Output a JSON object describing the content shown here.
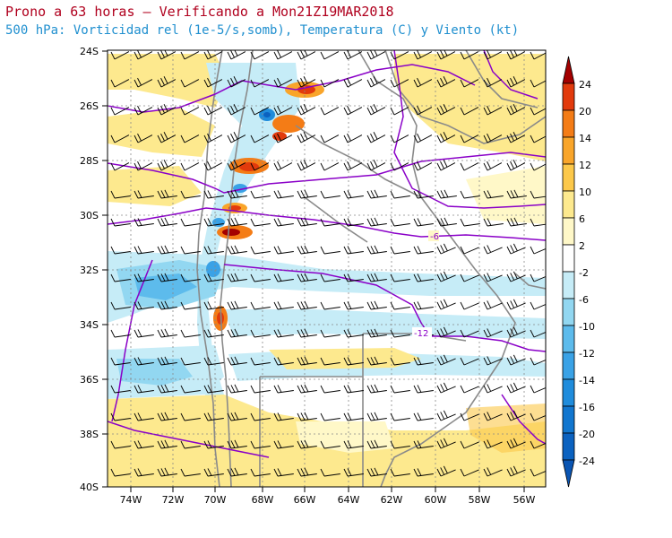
{
  "title": {
    "line1": "Prono a 63 horas – Verificando a Mon21Z19MAR2018",
    "line2": "500 hPa: Vorticidad rel (1e-5/s,somb), Temperatura (C) y Viento (kt)"
  },
  "map": {
    "lat_labels": [
      "24S",
      "26S",
      "28S",
      "30S",
      "32S",
      "34S",
      "36S",
      "38S",
      "40S"
    ],
    "lon_labels": [
      "74W",
      "72W",
      "70W",
      "68W",
      "66W",
      "64W",
      "62W",
      "60W",
      "58W",
      "56W"
    ],
    "isotherm_labels": [
      "-6",
      "-12"
    ],
    "isotherm_color": "#8a00c8"
  },
  "colorbar": {
    "labels": [
      "24",
      "20",
      "14",
      "12",
      "10",
      "6",
      "2",
      "-2",
      "-6",
      "-10",
      "-12",
      "-14",
      "-16",
      "-20",
      "-24"
    ],
    "colors": [
      "#a40000",
      "#e23a0c",
      "#f47c16",
      "#f9a52a",
      "#fcc84a",
      "#fde98e",
      "#fff8c8",
      "#ffffff",
      "#c6ecf7",
      "#92d7f1",
      "#5dbbec",
      "#3aa2e6",
      "#1f8cdc",
      "#1176cf",
      "#0b62c0",
      "#0a55b3"
    ]
  }
}
